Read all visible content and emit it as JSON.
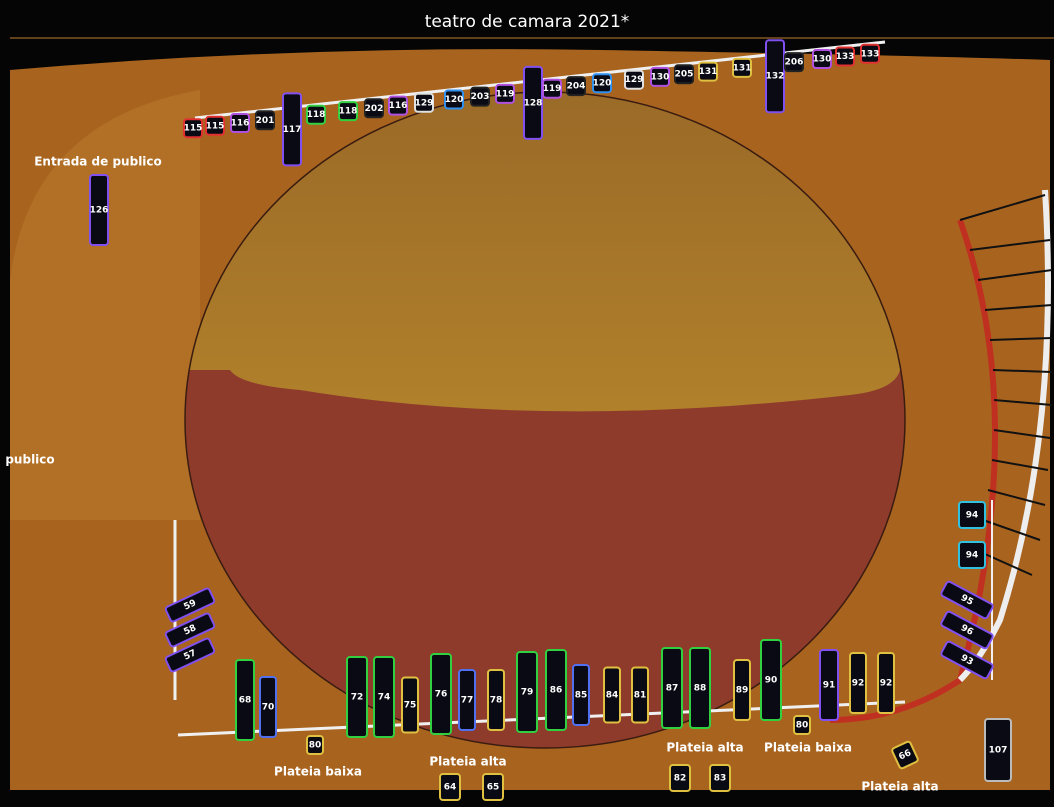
{
  "title": "teatro de camara 2021*",
  "labels": [
    "Entrada de publico",
    "publico",
    "Plateia baixa",
    "Plateia alta",
    "Plateia alta",
    "Plateia baixa",
    "Plateia alta"
  ],
  "fixtures": [
    {
      "label": "115",
      "color": "#e03030"
    },
    {
      "label": "115",
      "color": "#e03030"
    },
    {
      "label": "116",
      "color": "#b050e0"
    },
    {
      "label": "201",
      "color": "#222"
    },
    {
      "label": "117",
      "color": "#8050f0"
    },
    {
      "label": "118",
      "color": "#30d040"
    },
    {
      "label": "118",
      "color": "#30d040"
    },
    {
      "label": "202",
      "color": "#222"
    },
    {
      "label": "116",
      "color": "#b050e0"
    },
    {
      "label": "129",
      "color": "#e0e0e0"
    },
    {
      "label": "120",
      "color": "#3090f0"
    },
    {
      "label": "203",
      "color": "#222"
    },
    {
      "label": "119",
      "color": "#b050e0"
    },
    {
      "label": "128",
      "color": "#8050f0"
    },
    {
      "label": "119",
      "color": "#b050e0"
    },
    {
      "label": "204",
      "color": "#222"
    },
    {
      "label": "120",
      "color": "#3090f0"
    },
    {
      "label": "129",
      "color": "#e0e0e0"
    },
    {
      "label": "130",
      "color": "#b050e0"
    },
    {
      "label": "205",
      "color": "#222"
    },
    {
      "label": "131",
      "color": "#e0c040"
    },
    {
      "label": "131",
      "color": "#e0c040"
    },
    {
      "label": "132",
      "color": "#8050f0"
    },
    {
      "label": "206",
      "color": "#222"
    },
    {
      "label": "130",
      "color": "#b050e0"
    },
    {
      "label": "133",
      "color": "#e03030"
    },
    {
      "label": "133",
      "color": "#e03030"
    },
    {
      "label": "126",
      "color": "#8050f0"
    },
    {
      "label": "59",
      "color": "#8050f0"
    },
    {
      "label": "58",
      "color": "#8050f0"
    },
    {
      "label": "57",
      "color": "#8050f0"
    },
    {
      "label": "68",
      "color": "#30d040"
    },
    {
      "label": "70",
      "color": "#5070f0"
    },
    {
      "label": "72",
      "color": "#30d040"
    },
    {
      "label": "74",
      "color": "#30d040"
    },
    {
      "label": "75",
      "color": "#e0c040"
    },
    {
      "label": "76",
      "color": "#30d040"
    },
    {
      "label": "77",
      "color": "#5070f0"
    },
    {
      "label": "78",
      "color": "#e0c040"
    },
    {
      "label": "79",
      "color": "#30d040"
    },
    {
      "label": "86",
      "color": "#30d040"
    },
    {
      "label": "85",
      "color": "#5070f0"
    },
    {
      "label": "84",
      "color": "#e0c040"
    },
    {
      "label": "81",
      "color": "#e0c040"
    },
    {
      "label": "87",
      "color": "#30d040"
    },
    {
      "label": "88",
      "color": "#30d040"
    },
    {
      "label": "89",
      "color": "#e0c040"
    },
    {
      "label": "90",
      "color": "#30d040"
    },
    {
      "label": "91",
      "color": "#8050f0"
    },
    {
      "label": "92",
      "color": "#e0c040"
    },
    {
      "label": "92",
      "color": "#e0c040"
    },
    {
      "label": "80",
      "color": "#e0c040"
    },
    {
      "label": "80",
      "color": "#e0c040"
    },
    {
      "label": "64",
      "color": "#e0c040"
    },
    {
      "label": "65",
      "color": "#e0c040"
    },
    {
      "label": "82",
      "color": "#e0c040"
    },
    {
      "label": "83",
      "color": "#e0c040"
    },
    {
      "label": "66",
      "color": "#e0c040"
    },
    {
      "label": "107",
      "color": "#bbb"
    },
    {
      "label": "94",
      "color": "#30c0e0"
    },
    {
      "label": "94",
      "color": "#30c0e0"
    },
    {
      "label": "95",
      "color": "#8050f0"
    },
    {
      "label": "96",
      "color": "#8050f0"
    },
    {
      "label": "93",
      "color": "#8050f0"
    }
  ]
}
